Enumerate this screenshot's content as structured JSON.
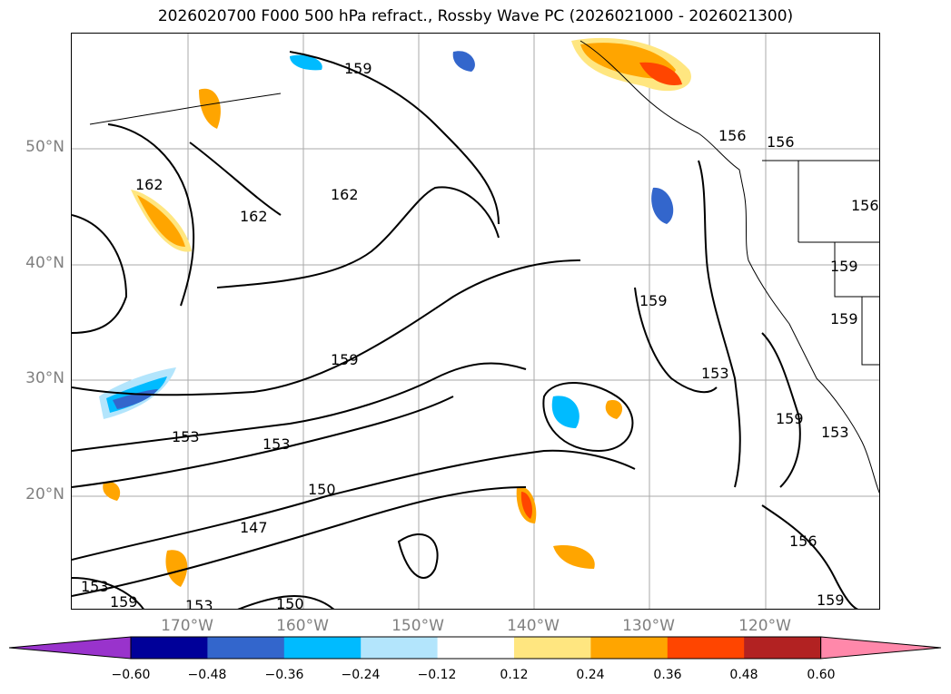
{
  "title": "2026020700 F000 500 hPa refract., Rossby Wave PC (2026021000 - 2026021300)",
  "map": {
    "lat_labels": [
      "50°N",
      "40°N",
      "30°N",
      "20°N"
    ],
    "lon_labels": [
      "170°W",
      "160°W",
      "150°W",
      "140°W",
      "130°W",
      "120°W"
    ],
    "contour_labels": [
      "159",
      "162",
      "162",
      "162",
      "156",
      "156",
      "156",
      "159",
      "159",
      "159",
      "159",
      "153",
      "153",
      "153",
      "150",
      "147",
      "153",
      "159",
      "156",
      "159",
      "150",
      "153",
      "153",
      "159"
    ]
  },
  "colorbar": {
    "ticks": [
      "−0.60",
      "−0.48",
      "−0.36",
      "−0.24",
      "−0.12",
      "0.12",
      "0.24",
      "0.36",
      "0.48",
      "0.60"
    ],
    "colors": [
      "#9933cc",
      "#000099",
      "#3366cc",
      "#00bbff",
      "#b3e5fc",
      "#ffffff",
      "#ffe680",
      "#ffa500",
      "#ff4500",
      "#b22222",
      "#ff88aa"
    ]
  }
}
